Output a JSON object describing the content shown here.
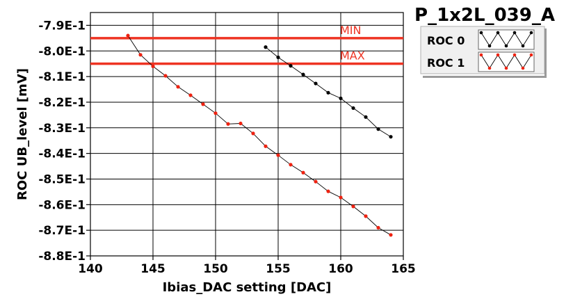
{
  "chart_data": {
    "type": "line",
    "title": "P_1x2L_039_A",
    "xlabel": "Ibias_DAC setting [DAC]",
    "ylabel": "ROC UB_level [mV]",
    "xlim": [
      140,
      165
    ],
    "ylim": [
      -0.88,
      -0.785
    ],
    "x_ticks": [
      140,
      145,
      150,
      155,
      160,
      165
    ],
    "x_tick_labels": [
      "140",
      "145",
      "150",
      "155",
      "160",
      "165"
    ],
    "y_ticks": [
      -0.79,
      -0.8,
      -0.81,
      -0.82,
      -0.83,
      -0.84,
      -0.85,
      -0.86,
      -0.87,
      -0.88
    ],
    "y_tick_labels": [
      "-7.9E-1",
      "-8.0E-1",
      "-8.1E-1",
      "-8.2E-1",
      "-8.3E-1",
      "-8.4E-1",
      "-8.5E-1",
      "-8.6E-1",
      "-8.7E-1",
      "-8.8E-1"
    ],
    "grid": true,
    "thresholds": [
      {
        "name": "MIN",
        "value": -0.795,
        "color": "#ee3322"
      },
      {
        "name": "MAX",
        "value": -0.805,
        "color": "#ee3322"
      }
    ],
    "series": [
      {
        "name": "ROC 0",
        "color": "#000000",
        "x": [
          154,
          155,
          156,
          157,
          158,
          159,
          160,
          161,
          162,
          163,
          164
        ],
        "y": [
          -0.7985,
          -0.8025,
          -0.8058,
          -0.8092,
          -0.8127,
          -0.8163,
          -0.8185,
          -0.8223,
          -0.8258,
          -0.8305,
          -0.8335
        ]
      },
      {
        "name": "ROC 1",
        "color": "#ee2211",
        "x": [
          143,
          144,
          145,
          146,
          147,
          148,
          149,
          150,
          151,
          152,
          153,
          154,
          155,
          156,
          157,
          158,
          159,
          160,
          161,
          162,
          163,
          164
        ],
        "y": [
          -0.794,
          -0.8015,
          -0.806,
          -0.8097,
          -0.814,
          -0.8173,
          -0.8208,
          -0.8243,
          -0.8285,
          -0.8283,
          -0.8322,
          -0.8372,
          -0.8407,
          -0.8444,
          -0.8475,
          -0.851,
          -0.8548,
          -0.8572,
          -0.8607,
          -0.8645,
          -0.869,
          -0.8718
        ]
      }
    ],
    "legend": {
      "position": "top-right",
      "entries": [
        "ROC 0",
        "ROC 1"
      ]
    }
  }
}
